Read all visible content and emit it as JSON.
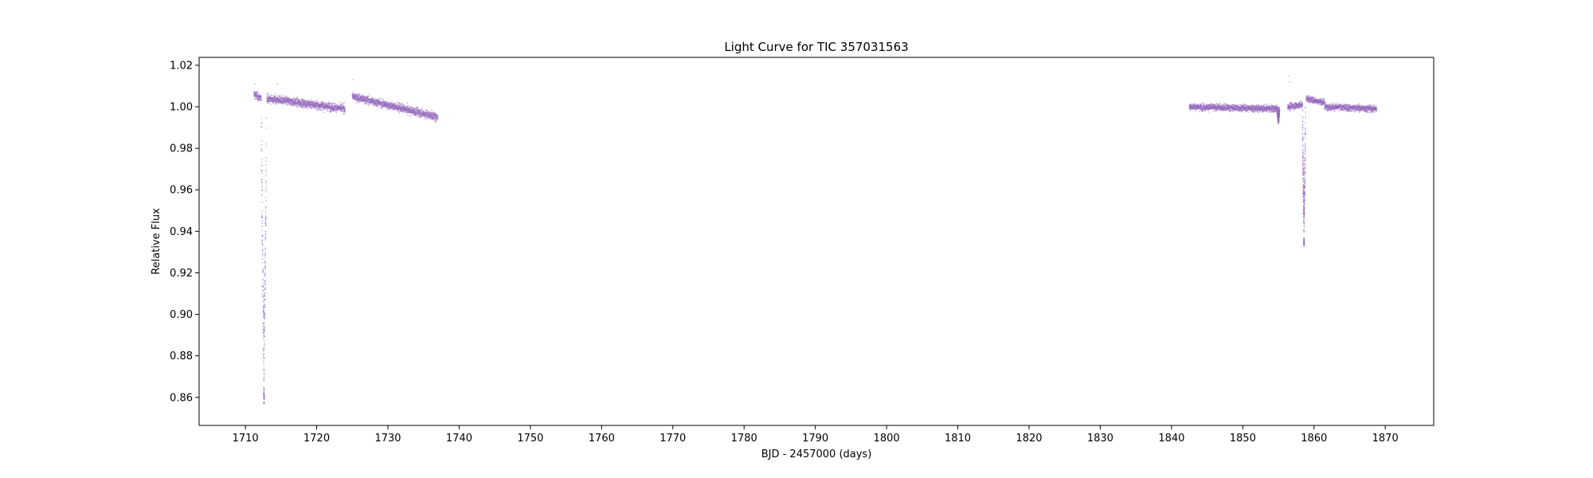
{
  "chart_data": {
    "type": "scatter",
    "title": "Light Curve for TIC 357031563",
    "xlabel": "BJD - 2457000 (days)",
    "ylabel": "Relative Flux",
    "xlim": [
      1703.5,
      1876.8
    ],
    "ylim": [
      0.8465,
      1.0238
    ],
    "xticks": [
      1710,
      1720,
      1730,
      1740,
      1750,
      1760,
      1770,
      1780,
      1790,
      1800,
      1810,
      1820,
      1830,
      1840,
      1850,
      1860,
      1870
    ],
    "yticks": [
      0.86,
      0.88,
      0.9,
      0.92,
      0.94,
      0.96,
      0.98,
      1.0,
      1.02
    ],
    "ytick_labels": [
      "0.86",
      "0.88",
      "0.90",
      "0.92",
      "0.94",
      "0.96",
      "0.98",
      "1.00",
      "1.02"
    ],
    "grid": false,
    "marker_color": "#9467bd",
    "series": [
      {
        "segments": [
          {
            "x_start": 1711.2,
            "x_end": 1712.2,
            "flux_start": 1.006,
            "flux_end": 1.004,
            "scatter": 0.003
          },
          {
            "x_start": 1713.0,
            "x_end": 1724.0,
            "flux_start": 1.004,
            "flux_end": 0.999,
            "scatter": 0.003
          },
          {
            "x_start": 1725.0,
            "x_end": 1737.0,
            "flux_start": 1.005,
            "flux_end": 0.995,
            "scatter": 0.003
          },
          {
            "x_start": 1842.5,
            "x_end": 1855.0,
            "flux_start": 1.0,
            "flux_end": 0.999,
            "scatter": 0.0025
          },
          {
            "x_start": 1856.3,
            "x_end": 1858.4,
            "flux_start": 1.0,
            "flux_end": 1.001,
            "scatter": 0.0025
          },
          {
            "x_start": 1858.9,
            "x_end": 1861.5,
            "flux_start": 1.004,
            "flux_end": 1.002,
            "scatter": 0.0025
          },
          {
            "x_start": 1861.5,
            "x_end": 1868.8,
            "flux_start": 1.0,
            "flux_end": 0.999,
            "scatter": 0.0025
          }
        ],
        "dips": [
          {
            "x_center": 1712.6,
            "min_flux": 0.857,
            "baseline": 1.004,
            "half_width": 0.35
          },
          {
            "x_center": 1858.6,
            "min_flux": 0.933,
            "baseline": 1.001,
            "half_width": 0.2
          },
          {
            "x_center": 1855.0,
            "min_flux": 0.993,
            "baseline": 0.999,
            "half_width": 0.15
          }
        ]
      }
    ]
  }
}
